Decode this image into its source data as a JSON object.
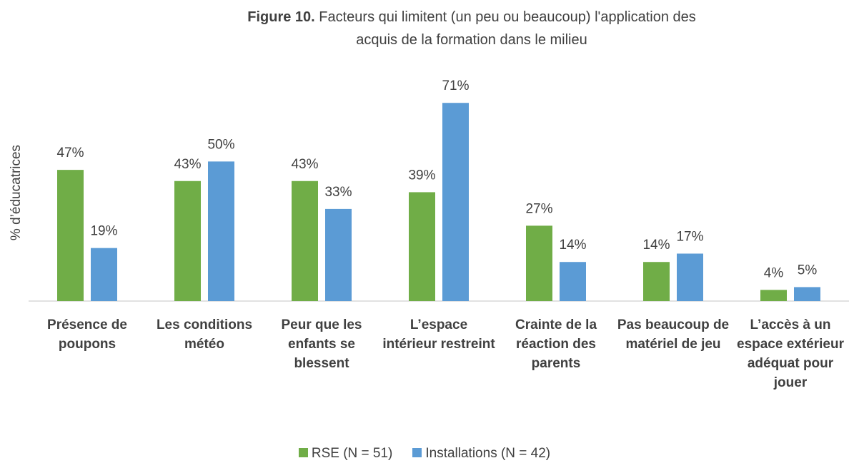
{
  "chart_data": {
    "type": "bar",
    "figure_label": "Figure 10.",
    "title": "Facteurs qui limitent (un peu ou beaucoup) l'application des acquis de la formation dans le milieu",
    "y_label": "% d’éducatrices",
    "categories": [
      "Présence de poupons",
      "Les conditions météo",
      "Peur que les enfants se blessent",
      "L’espace intérieur restreint",
      "Crainte de la réaction des parents",
      "Pas beaucoup de matériel de jeu",
      "L’accès à un espace extérieur adéquat pour jouer"
    ],
    "series": [
      {
        "name": "RSE (N = 51)",
        "color": "#70ad47",
        "values": [
          47,
          43,
          43,
          39,
          27,
          14,
          4
        ],
        "value_labels": [
          "47%",
          "43%",
          "43%",
          "39%",
          "27%",
          "14%",
          "4%"
        ]
      },
      {
        "name": "Installations (N = 42)",
        "color": "#5b9bd5",
        "values": [
          19,
          50,
          33,
          71,
          14,
          17,
          5
        ],
        "value_labels": [
          "19%",
          "50%",
          "33%",
          "71%",
          "14%",
          "17%",
          "5%"
        ]
      }
    ],
    "ylim": [
      0,
      80
    ],
    "legend": "bottom"
  }
}
